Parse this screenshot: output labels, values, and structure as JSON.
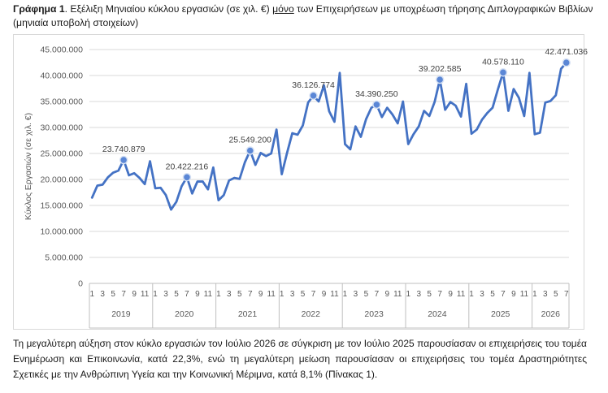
{
  "caption": {
    "label": "Γράφημα 1",
    "text_before": ". Εξέλιξη Μηνιαίου κύκλου εργασιών (σε χιλ. €) ",
    "emphasis": "μόνο",
    "text_after": " των Επιχειρήσεων με υποχρέωση τήρησης Διπλογραφικών Βιβλίων (μηνιαία υποβολή στοιχείων)"
  },
  "footer_text": "Τη μεγαλύτερη αύξηση στον κύκλο εργασιών τον Ιούλιο 2026 σε σύγκριση με τον Ιούλιο 2025 παρουσίασαν οι επιχειρήσεις του τομέα Ενημέρωση και Επικοινωνία, κατά 22,3%, ενώ τη μεγαλύτερη μείωση παρουσίασαν οι επιχειρήσεις του τομέα Δραστηριότητες Σχετικές με την Ανθρώπινη Υγεία και την Κοινωνική Μέριμνα, κατά 8,1% (Πίνακας 1).",
  "colors": {
    "line": "#4472c4",
    "marker": "#5b87d6",
    "grid": "#d9d9d9",
    "axis_text": "#595959"
  },
  "chart_data": {
    "type": "line",
    "ylabel": "Κύκλος Εργασιών (σε χιλ. €)",
    "ylim": [
      0,
      45000000
    ],
    "yticks": [
      0,
      5000000,
      10000000,
      15000000,
      20000000,
      25000000,
      30000000,
      35000000,
      40000000,
      45000000
    ],
    "ytick_labels": [
      "0",
      "5.000.000",
      "10.000.000",
      "15.000.000",
      "20.000.000",
      "25.000.000",
      "30.000.000",
      "35.000.000",
      "40.000.000",
      "45.000.000"
    ],
    "grid": true,
    "years": [
      "2019",
      "2020",
      "2021",
      "2022",
      "2023",
      "2024",
      "2025",
      "2026"
    ],
    "months_per_year": [
      12,
      12,
      12,
      12,
      12,
      12,
      12,
      7
    ],
    "month_tick_labels": [
      "1",
      "3",
      "5",
      "7",
      "9",
      "11"
    ],
    "series": [
      {
        "values": [
          16500000,
          18800000,
          19000000,
          20400000,
          21300000,
          21700000,
          23740879,
          20800000,
          21200000,
          20300000,
          19100000,
          23500000,
          18300000,
          18400000,
          17000000,
          14200000,
          15700000,
          18700000,
          20422216,
          17300000,
          19600000,
          19600000,
          18100000,
          22300000,
          16000000,
          17000000,
          19800000,
          20300000,
          20100000,
          23300000,
          25549200,
          22800000,
          25100000,
          24500000,
          25000000,
          29600000,
          21000000,
          25100000,
          28900000,
          28600000,
          30400000,
          34800000,
          36126774,
          35000000,
          38100000,
          33100000,
          31100000,
          40500000,
          26800000,
          25800000,
          30200000,
          28200000,
          31600000,
          33800000,
          34390250,
          32000000,
          33800000,
          32500000,
          30800000,
          35000000,
          26800000,
          28700000,
          30200000,
          33200000,
          32200000,
          34900000,
          39202585,
          33400000,
          34900000,
          34200000,
          32100000,
          38400000,
          28800000,
          29600000,
          31500000,
          32800000,
          33800000,
          37300000,
          40578110,
          33200000,
          37400000,
          35700000,
          32200000,
          40500000,
          28700000,
          29000000,
          34800000,
          35100000,
          36200000,
          41300000,
          42471036
        ]
      }
    ],
    "annotations": [
      {
        "index": 6,
        "label": "23.740.879"
      },
      {
        "index": 18,
        "label": "20.422.216"
      },
      {
        "index": 30,
        "label": "25.549.200"
      },
      {
        "index": 42,
        "label": "36.126.774"
      },
      {
        "index": 54,
        "label": "34.390.250"
      },
      {
        "index": 66,
        "label": "39.202.585"
      },
      {
        "index": 78,
        "label": "40.578.110"
      },
      {
        "index": 90,
        "label": "42.471.036"
      }
    ]
  }
}
